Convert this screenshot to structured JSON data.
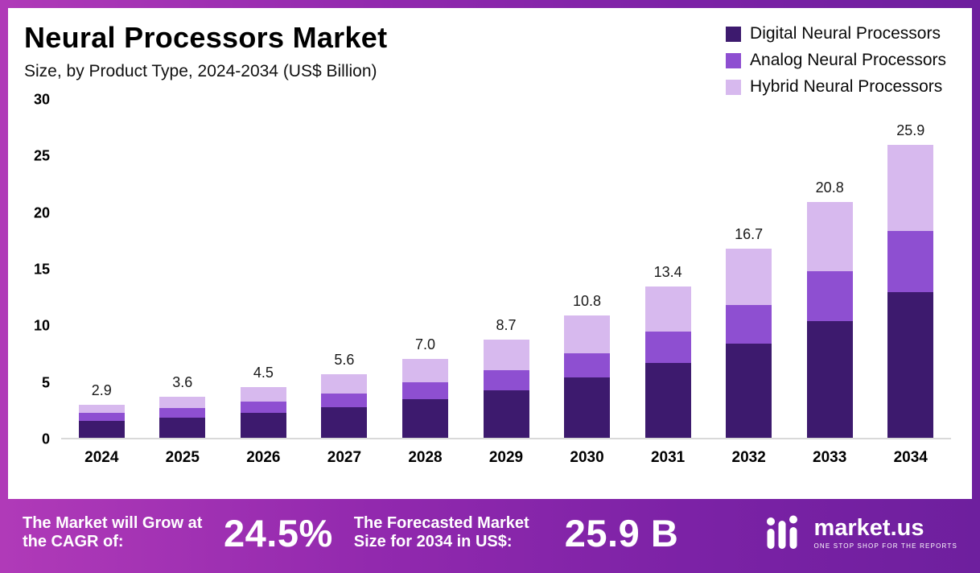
{
  "header": {
    "title": "Neural Processors Market",
    "subtitle": "Size, by Product Type, 2024-2034 (US$ Billion)"
  },
  "chart_data": {
    "type": "bar",
    "stacked": true,
    "title": "Neural Processors Market Size, by Product Type, 2024-2034 (US$ Billion)",
    "categories": [
      "2024",
      "2025",
      "2026",
      "2027",
      "2028",
      "2029",
      "2030",
      "2031",
      "2032",
      "2033",
      "2034"
    ],
    "series": [
      {
        "name": "Digital Neural Processors",
        "color": "#3d1a6e",
        "values": [
          1.5,
          1.8,
          2.2,
          2.7,
          3.4,
          4.2,
          5.3,
          6.6,
          8.3,
          10.3,
          12.9
        ]
      },
      {
        "name": "Analog Neural Processors",
        "color": "#8e4fd1",
        "values": [
          0.7,
          0.8,
          1.0,
          1.2,
          1.5,
          1.8,
          2.2,
          2.8,
          3.4,
          4.4,
          5.4
        ]
      },
      {
        "name": "Hybrid Neural Processors",
        "color": "#d7b9ee",
        "values": [
          0.7,
          1.0,
          1.3,
          1.7,
          2.1,
          2.7,
          3.3,
          4.0,
          5.0,
          6.1,
          7.6
        ]
      }
    ],
    "totals": [
      2.9,
      3.6,
      4.5,
      5.6,
      7.0,
      8.7,
      10.8,
      13.4,
      16.7,
      20.8,
      25.9
    ],
    "total_labels": [
      "2.9",
      "3.6",
      "4.5",
      "5.6",
      "7.0",
      "8.7",
      "10.8",
      "13.4",
      "16.7",
      "20.8",
      "25.9"
    ],
    "xlabel": "",
    "ylabel": "",
    "ylim": [
      0,
      30
    ],
    "yticks": [
      0,
      5,
      10,
      15,
      20,
      25,
      30
    ],
    "grid": false,
    "legend_position": "top-right"
  },
  "footer": {
    "cagr_label": "The Market will Grow at the CAGR of:",
    "cagr_value": "24.5%",
    "forecast_label": "The Forecasted Market Size for 2034 in US$:",
    "forecast_value": "25.9 B",
    "brand": "market.us",
    "brand_tagline": "ONE STOP SHOP FOR THE REPORTS"
  }
}
